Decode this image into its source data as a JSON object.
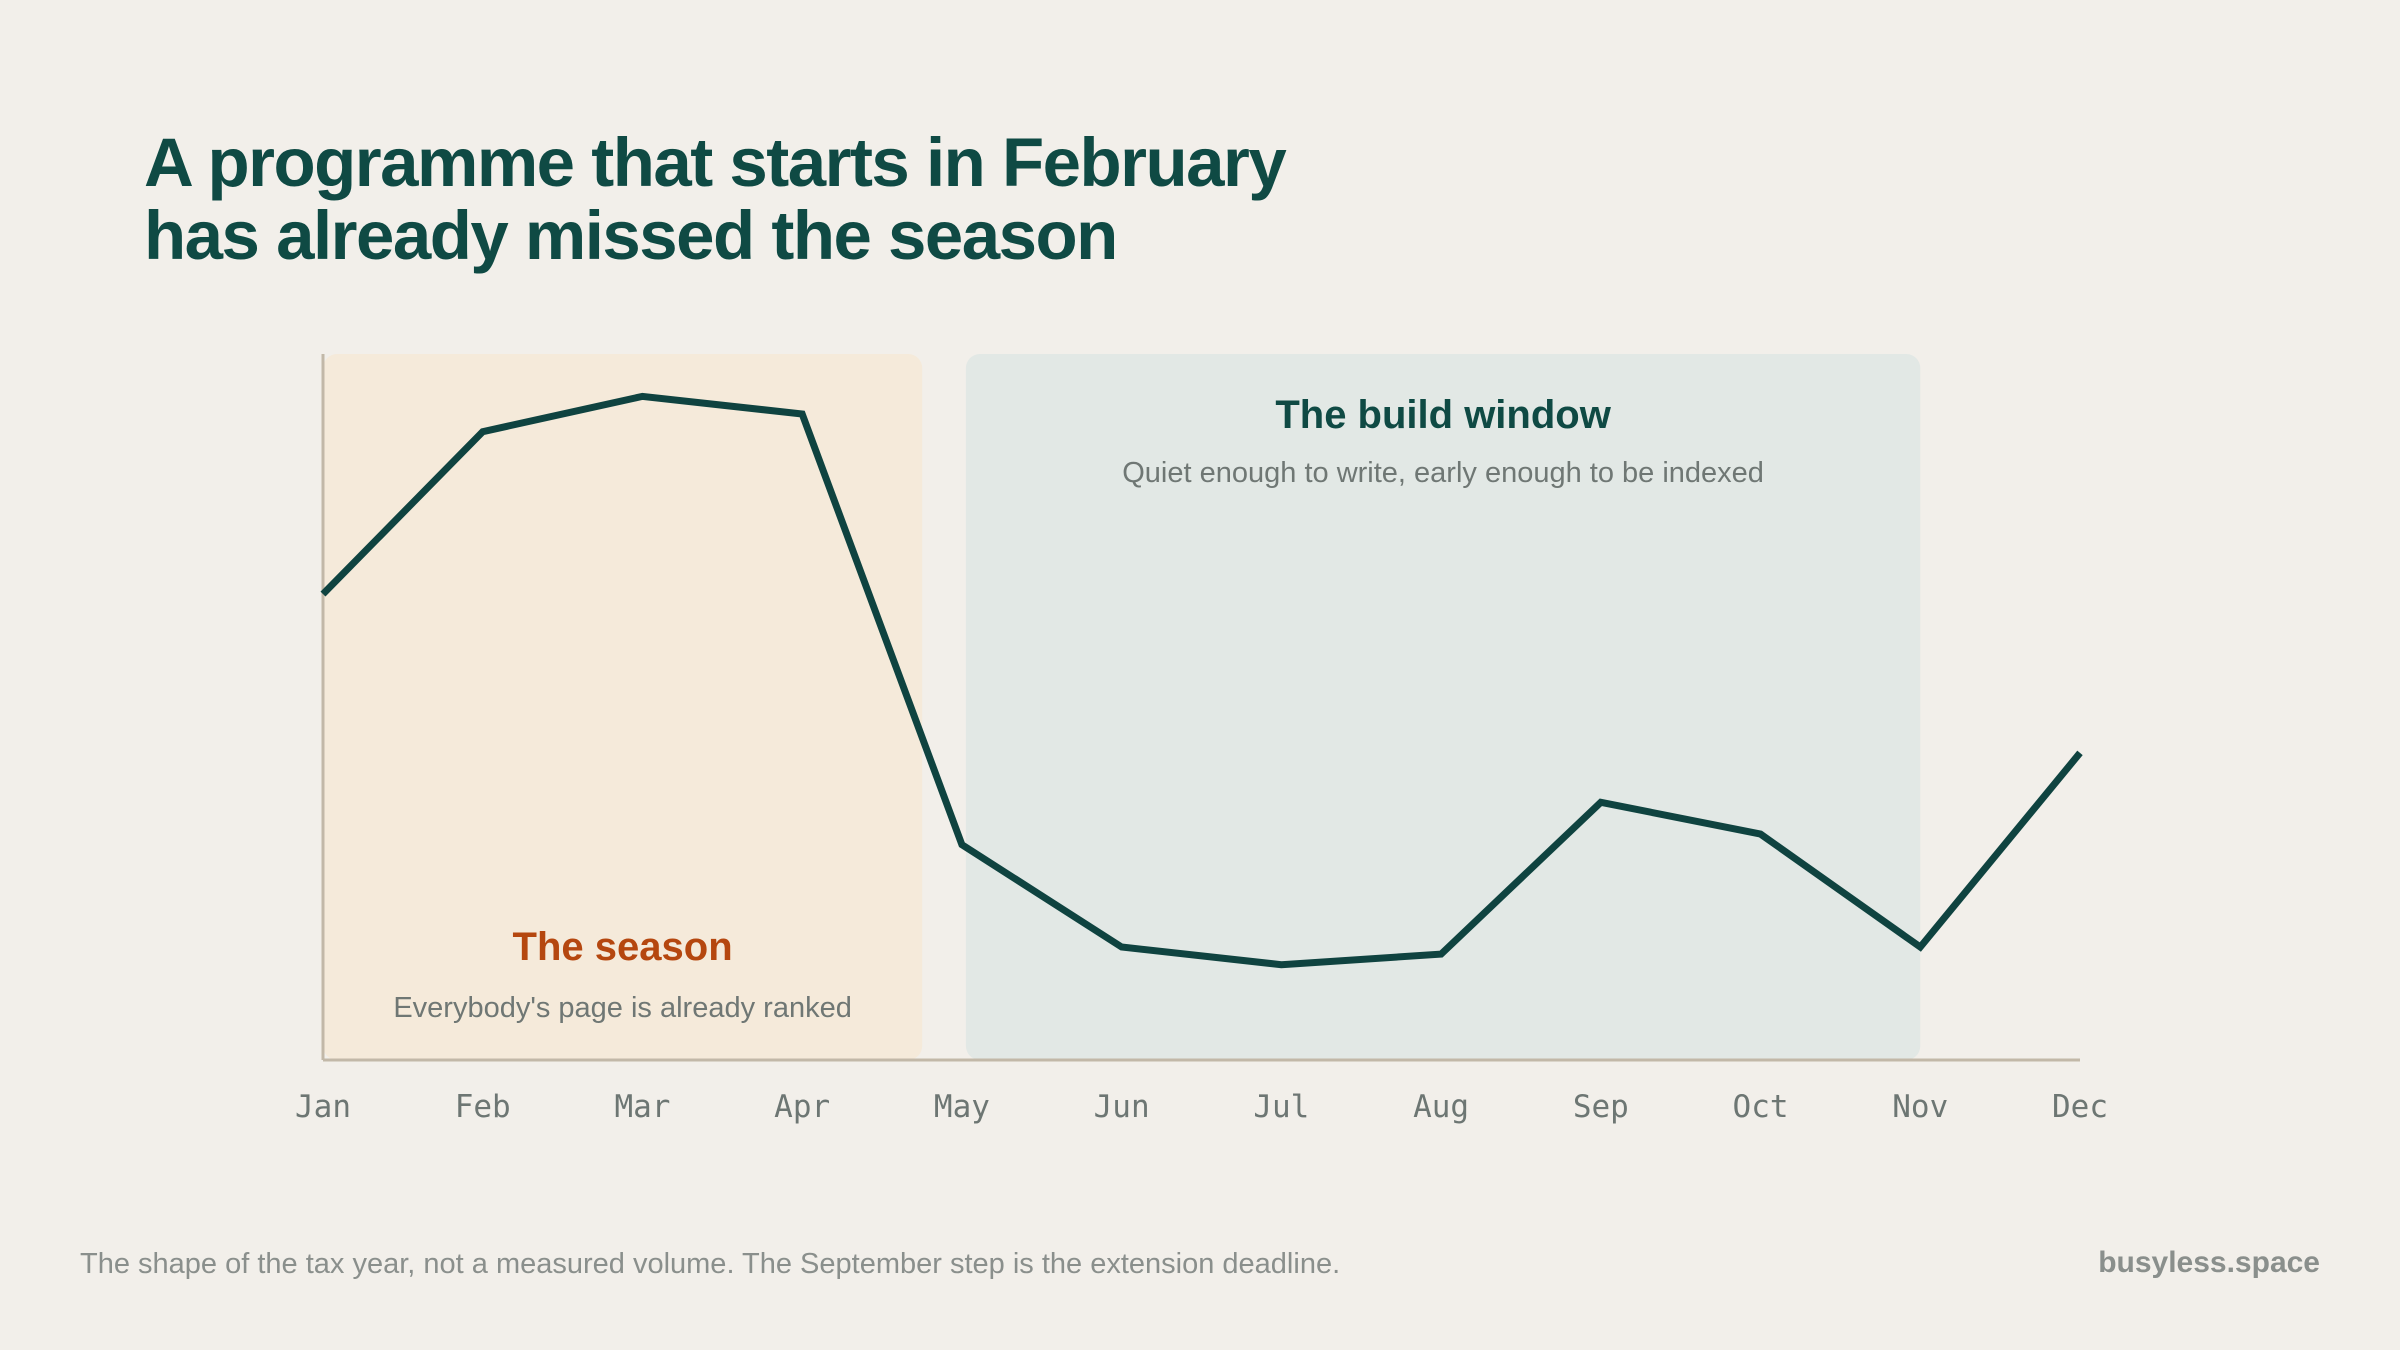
{
  "title": {
    "line1": "A programme that starts in February",
    "line2": "has already missed the season"
  },
  "chart_data": {
    "type": "line",
    "categories": [
      "Jan",
      "Feb",
      "Mar",
      "Apr",
      "May",
      "Jun",
      "Jul",
      "Aug",
      "Sep",
      "Oct",
      "Nov",
      "Dec"
    ],
    "values": [
      66,
      89,
      94,
      91.5,
      30.5,
      16,
      13.5,
      15,
      36.5,
      32,
      16,
      43.5
    ],
    "ylim": [
      0,
      100
    ],
    "xlabel": "",
    "ylabel": "",
    "grid": false,
    "regions": [
      {
        "name": "season",
        "from": "Jan",
        "to": "Apr",
        "label": "The season",
        "sublabel": "Everybody's page is already ranked",
        "fill": "#f5eada",
        "label_color": "#b5470f"
      },
      {
        "name": "build-window",
        "from": "May",
        "to": "Nov",
        "label": "The build window",
        "sublabel": "Quiet enough to write, early enough to be indexed",
        "fill": "#e2e8e5",
        "label_color": "#0f4a44"
      }
    ]
  },
  "footnote": "The shape of the tax year, not a measured volume. The September step is the extension deadline.",
  "brand": "busyless.space",
  "colors": {
    "background": "#f2efea",
    "line": "#0f4340",
    "axis": "#c2b8a8",
    "tick_text": "#6d7673",
    "sublabel_text": "#6f7774"
  }
}
